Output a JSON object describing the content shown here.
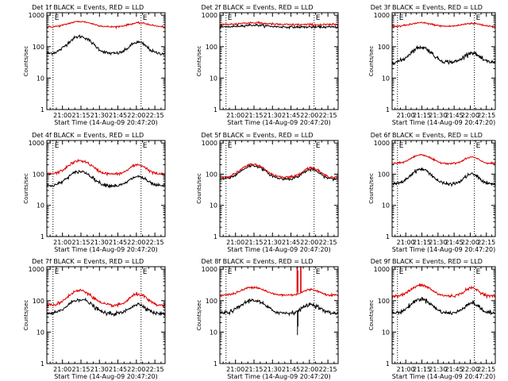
{
  "figure": {
    "background": "#ffffff",
    "black_color": "#000000",
    "red_color": "#e00000"
  },
  "chart_data": [
    {
      "type": "line",
      "title": "Det 1f  BLACK = Events, RED = LLD",
      "xlabel": "Start Time (14-Aug-09 20:47:20)",
      "ylabel": "Counts/sec",
      "xtick_labels": [
        "21:00",
        "21:15",
        "21:30",
        "21:45",
        "22:00",
        "22:15"
      ],
      "xticks_min": [
        12.7,
        27.7,
        42.7,
        57.7,
        72.7,
        87.7
      ],
      "ytick_labels": [
        "1",
        "10",
        "100",
        "1000"
      ],
      "yticks": [
        1,
        10,
        100,
        1000
      ],
      "xlim_min": [
        0,
        96
      ],
      "ylim": [
        1,
        1200
      ],
      "log_y": true,
      "vlines_min": [
        5.0,
        76.5
      ],
      "markers": [
        "E",
        "E"
      ],
      "series": [
        {
          "name": "Events",
          "color": "black",
          "base": 60,
          "bumps": [
            [
              27,
              3.5,
              8
            ],
            [
              74,
              2.3,
              6
            ]
          ],
          "noise": 0.06
        },
        {
          "name": "LLD",
          "color": "red",
          "base": 420,
          "bumps": [
            [
              27,
              1.5,
              9
            ],
            [
              75,
              1.35,
              8
            ]
          ],
          "noise": 0.03
        }
      ]
    },
    {
      "type": "line",
      "title": "Det 2f  BLACK = Events, RED = LLD",
      "xlabel": "Start Time (14-Aug-09 20:47:20)",
      "ylabel": "Counts/sec",
      "xtick_labels": [
        "21:00",
        "21:15",
        "21:30",
        "21:45",
        "22:00",
        "22:15"
      ],
      "xticks_min": [
        12.7,
        27.7,
        42.7,
        57.7,
        72.7,
        87.7
      ],
      "ytick_labels": [
        "1",
        "10",
        "100",
        "1000"
      ],
      "yticks": [
        1,
        10,
        100,
        1000
      ],
      "xlim_min": [
        0,
        96
      ],
      "ylim": [
        1,
        1200
      ],
      "log_y": true,
      "vlines_min": [
        5.0,
        76.5
      ],
      "markers": [
        "E",
        "E"
      ],
      "series": [
        {
          "name": "Events",
          "color": "black",
          "base": 420,
          "bumps": [
            [
              27,
              1.15,
              10
            ]
          ],
          "noise": 0.04
        },
        {
          "name": "LLD",
          "color": "red",
          "base": 500,
          "bumps": [
            [
              27,
              1.15,
              10
            ]
          ],
          "noise": 0.04
        }
      ]
    },
    {
      "type": "line",
      "title": "Det 3f  BLACK = Events, RED = LLD",
      "xlabel": "Start Time (14-Aug-09 20:47:20)",
      "ylabel": "Counts/sec",
      "xtick_labels": [
        "21:00",
        "21:15",
        "21:30",
        "21:45",
        "22:00",
        "22:15"
      ],
      "xticks_min": [
        12.7,
        27.7,
        42.7,
        57.7,
        72.7,
        87.7
      ],
      "ytick_labels": [
        "1",
        "10",
        "100",
        "1000"
      ],
      "yticks": [
        1,
        10,
        100,
        1000
      ],
      "xlim_min": [
        0,
        96
      ],
      "ylim": [
        1,
        1200
      ],
      "log_y": true,
      "vlines_min": [
        5.0,
        76.5
      ],
      "markers": [
        "E",
        "E"
      ],
      "series": [
        {
          "name": "Events",
          "color": "black",
          "base": 32,
          "bumps": [
            [
              27,
              3.0,
              8
            ],
            [
              74,
              2.0,
              6
            ]
          ],
          "noise": 0.07
        },
        {
          "name": "LLD",
          "color": "red",
          "base": 440,
          "bumps": [
            [
              27,
              1.3,
              9
            ],
            [
              74,
              1.25,
              8
            ]
          ],
          "noise": 0.03
        }
      ]
    },
    {
      "type": "line",
      "title": "Det 4f  BLACK = Events, RED = LLD",
      "xlabel": "Start Time (14-Aug-09 20:47:20)",
      "ylabel": "Counts/sec",
      "xtick_labels": [
        "21:00",
        "21:15",
        "21:30",
        "21:45",
        "22:00",
        "22:15"
      ],
      "xticks_min": [
        12.7,
        27.7,
        42.7,
        57.7,
        72.7,
        87.7
      ],
      "ytick_labels": [
        "1",
        "10",
        "100",
        "1000"
      ],
      "yticks": [
        1,
        10,
        100,
        1000
      ],
      "xlim_min": [
        0,
        96
      ],
      "ylim": [
        1,
        1200
      ],
      "log_y": true,
      "vlines_min": [
        5.0,
        76.5
      ],
      "markers": [
        "E",
        "E"
      ],
      "series": [
        {
          "name": "Events",
          "color": "black",
          "base": 42,
          "bumps": [
            [
              27,
              2.9,
              8
            ],
            [
              74,
              2.0,
              6
            ]
          ],
          "noise": 0.06
        },
        {
          "name": "LLD",
          "color": "red",
          "base": 100,
          "bumps": [
            [
              27,
              2.7,
              8
            ],
            [
              74,
              2.0,
              6
            ]
          ],
          "noise": 0.05
        }
      ]
    },
    {
      "type": "line",
      "title": "Det 5f  BLACK = Events, RED = LLD",
      "xlabel": "Start Time (14-Aug-09 20:47:20)",
      "ylabel": "Counts/sec",
      "xtick_labels": [
        "21:00",
        "21:15",
        "21:30",
        "21:45",
        "22:00",
        "22:15"
      ],
      "xticks_min": [
        12.7,
        27.7,
        42.7,
        57.7,
        72.7,
        87.7
      ],
      "ytick_labels": [
        "1",
        "10",
        "100",
        "1000"
      ],
      "yticks": [
        1,
        10,
        100,
        1000
      ],
      "xlim_min": [
        0,
        96
      ],
      "ylim": [
        1,
        1200
      ],
      "log_y": true,
      "vlines_min": [
        5.0,
        76.5
      ],
      "markers": [
        "E",
        "E"
      ],
      "series": [
        {
          "name": "Events",
          "color": "black",
          "base": 70,
          "bumps": [
            [
              27,
              2.7,
              8
            ],
            [
              74,
              2.0,
              6
            ]
          ],
          "noise": 0.05
        },
        {
          "name": "LLD",
          "color": "red",
          "base": 80,
          "bumps": [
            [
              27,
              2.6,
              8
            ],
            [
              74,
              2.0,
              6
            ]
          ],
          "noise": 0.04
        }
      ]
    },
    {
      "type": "line",
      "title": "Det 6f  BLACK = Events, RED = LLD",
      "xlabel": "Start Time (14-Aug-09 20:47:20)",
      "ylabel": "Counts/sec",
      "xtick_labels": [
        "21:00",
        "21:15",
        "21:30",
        "21:45",
        "22:00",
        "22:15"
      ],
      "xticks_min": [
        12.7,
        27.7,
        42.7,
        57.7,
        72.7,
        87.7
      ],
      "ytick_labels": [
        "1",
        "10",
        "100",
        "1000"
      ],
      "yticks": [
        1,
        10,
        100,
        1000
      ],
      "xlim_min": [
        0,
        96
      ],
      "ylim": [
        1,
        1200
      ],
      "log_y": true,
      "vlines_min": [
        5.0,
        76.5
      ],
      "markers": [
        "E",
        "E"
      ],
      "series": [
        {
          "name": "Events",
          "color": "black",
          "base": 48,
          "bumps": [
            [
              27,
              3.0,
              8
            ],
            [
              74,
              2.1,
              6
            ]
          ],
          "noise": 0.06
        },
        {
          "name": "LLD",
          "color": "red",
          "base": 220,
          "bumps": [
            [
              27,
              1.9,
              8
            ],
            [
              74,
              1.6,
              6
            ]
          ],
          "noise": 0.03
        }
      ]
    },
    {
      "type": "line",
      "title": "Det 7f  BLACK = Events, RED = LLD",
      "xlabel": "Start Time (14-Aug-09 20:47:20)",
      "ylabel": "Counts/sec",
      "xtick_labels": [
        "21:00",
        "21:15",
        "21:30",
        "21:45",
        "22:00",
        "22:15"
      ],
      "xticks_min": [
        12.7,
        27.7,
        42.7,
        57.7,
        72.7,
        87.7
      ],
      "ytick_labels": [
        "1",
        "10",
        "100",
        "1000"
      ],
      "yticks": [
        1,
        10,
        100,
        1000
      ],
      "xlim_min": [
        0,
        96
      ],
      "ylim": [
        1,
        1200
      ],
      "log_y": true,
      "vlines_min": [
        5.0,
        76.5
      ],
      "markers": [
        "E",
        "E"
      ],
      "series": [
        {
          "name": "Events",
          "color": "black",
          "base": 38,
          "bumps": [
            [
              27,
              2.9,
              8
            ],
            [
              74,
              2.0,
              6
            ]
          ],
          "noise": 0.07
        },
        {
          "name": "LLD",
          "color": "red",
          "base": 70,
          "bumps": [
            [
              27,
              3.0,
              8
            ],
            [
              74,
              2.3,
              6
            ]
          ],
          "noise": 0.06
        }
      ]
    },
    {
      "type": "line",
      "title": "Det 8f  BLACK = Events, RED = LLD",
      "xlabel": "Start Time (14-Aug-09 20:47:20)",
      "ylabel": "Counts/sec",
      "xtick_labels": [
        "21:00",
        "21:15",
        "21:30",
        "21:45",
        "22:00",
        "22:15"
      ],
      "xticks_min": [
        12.7,
        27.7,
        42.7,
        57.7,
        72.7,
        87.7
      ],
      "ytick_labels": [
        "1",
        "10",
        "100",
        "1000"
      ],
      "yticks": [
        1,
        10,
        100,
        1000
      ],
      "xlim_min": [
        0,
        96
      ],
      "ylim": [
        1,
        1200
      ],
      "log_y": true,
      "vlines_min": [
        5.0,
        76.5
      ],
      "markers": [
        "E",
        "E"
      ],
      "series": [
        {
          "name": "Events",
          "color": "black",
          "base": 40,
          "bumps": [
            [
              27,
              2.6,
              8
            ],
            [
              74,
              1.9,
              6
            ]
          ],
          "noise": 0.07,
          "spikes": [
            [
              63.0,
              8
            ],
            [
              63.4,
              15
            ]
          ]
        },
        {
          "name": "LLD",
          "color": "red",
          "base": 150,
          "bumps": [
            [
              27,
              1.8,
              8
            ],
            [
              74,
              1.5,
              6
            ]
          ],
          "noise": 0.04,
          "spikes": [
            [
              62.6,
              1200
            ],
            [
              63.0,
              1200
            ],
            [
              63.4,
              900
            ],
            [
              65.5,
              1200
            ],
            [
              65.9,
              1200
            ]
          ]
        }
      ]
    },
    {
      "type": "line",
      "title": "Det 9f  BLACK = Events, RED = LLD",
      "xlabel": "Start Time (14-Aug-09 20:47:20)",
      "ylabel": "Counts/sec",
      "xtick_labels": [
        "21:00",
        "21:15",
        "21:30",
        "21:45",
        "22:00",
        "22:15"
      ],
      "xticks_min": [
        12.7,
        27.7,
        42.7,
        57.7,
        72.7,
        87.7
      ],
      "ytick_labels": [
        "1",
        "10",
        "100",
        "1000"
      ],
      "yticks": [
        1,
        10,
        100,
        1000
      ],
      "xlim_min": [
        0,
        96
      ],
      "ylim": [
        1,
        1200
      ],
      "log_y": true,
      "vlines_min": [
        5.0,
        76.5
      ],
      "markers": [
        "E",
        "E"
      ],
      "series": [
        {
          "name": "Events",
          "color": "black",
          "base": 40,
          "bumps": [
            [
              27,
              2.8,
              8
            ],
            [
              74,
              2.1,
              6
            ]
          ],
          "noise": 0.07
        },
        {
          "name": "LLD",
          "color": "red",
          "base": 140,
          "bumps": [
            [
              27,
              2.2,
              8
            ],
            [
              74,
              1.8,
              6
            ]
          ],
          "noise": 0.05
        }
      ]
    }
  ]
}
